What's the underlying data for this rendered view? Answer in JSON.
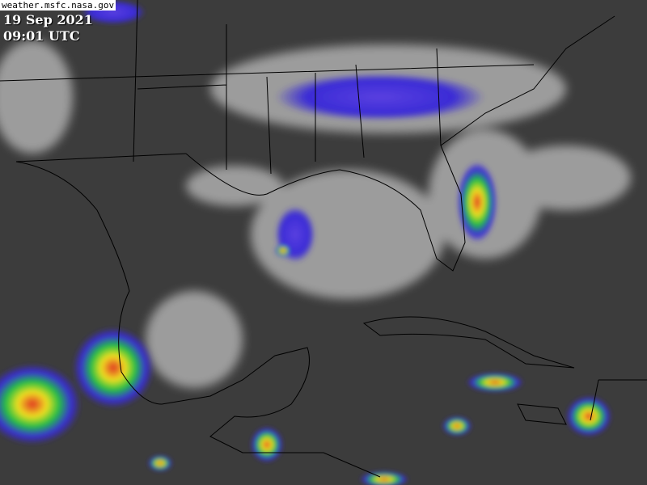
{
  "source_label": "weather.msfc.nasa.gov",
  "date_label": "19 Sep 2021",
  "time_label": "09:01 UTC",
  "colors": {
    "background": "#3a3a3a",
    "cloud": "#cfcfcf",
    "storm_low": "#3a2bd6",
    "storm_mid": "#22c040",
    "storm_high": "#f0e020",
    "storm_peak": "#e03020",
    "borders": "#000000"
  },
  "layers": [
    "infrared-satellite-icon",
    "state-borders-icon",
    "coastline-icon"
  ]
}
